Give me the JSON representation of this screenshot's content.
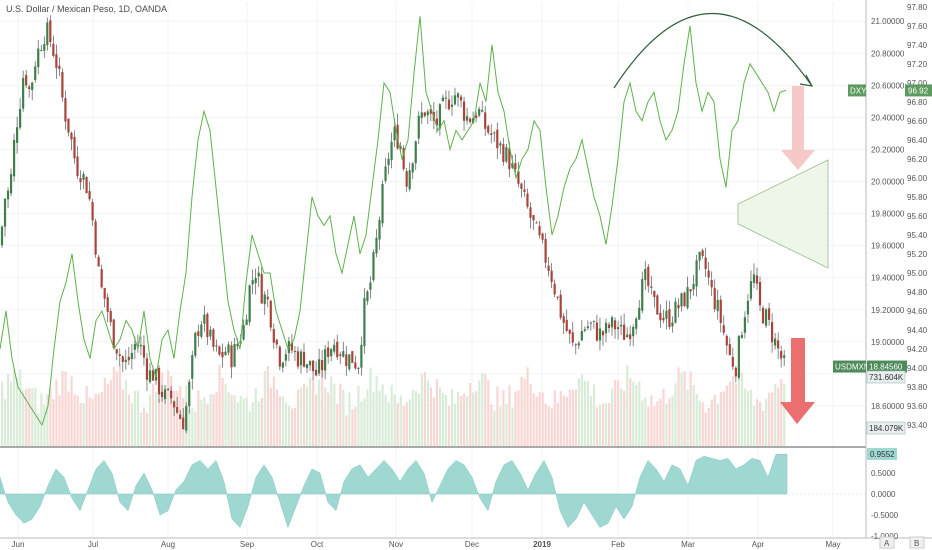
{
  "header": {
    "symbol_title": "U.S. Dollar / Mexican Peso, 1D, OANDA"
  },
  "chart_data": [
    {
      "type": "candlestick",
      "name": "USDMXN",
      "timeframe": "1D",
      "ylim": [
        18.35,
        21.12
      ],
      "x_months": [
        "Jun",
        "Jul",
        "Aug",
        "Sep",
        "Oct",
        "Nov",
        "Dec",
        "2019",
        "Feb",
        "Mar",
        "Apr",
        "May"
      ],
      "right_axis_ticks": [
        21.0,
        20.8,
        20.6,
        20.4,
        20.2,
        20.0,
        19.8,
        19.6,
        19.4,
        19.2,
        19.0,
        18.8,
        18.6
      ],
      "right_axis_labels": [
        "21.00000",
        "20.80000",
        "20.60000",
        "20.40000",
        "20.20000",
        "20.00000",
        "19.80000",
        "19.60000",
        "19.40000",
        "19.20000",
        "19.00000",
        "18.80000",
        "18.60000"
      ],
      "close_path": [
        [
          0,
          19.6
        ],
        [
          5,
          19.9
        ],
        [
          10,
          19.95
        ],
        [
          15,
          20.3
        ],
        [
          20,
          20.5
        ],
        [
          24,
          20.7
        ],
        [
          30,
          20.55
        ],
        [
          35,
          20.75
        ],
        [
          40,
          20.85
        ],
        [
          46,
          20.95
        ],
        [
          52,
          20.85
        ],
        [
          58,
          20.7
        ],
        [
          64,
          20.45
        ],
        [
          70,
          20.3
        ],
        [
          76,
          20.1
        ],
        [
          82,
          20.05
        ],
        [
          88,
          19.95
        ],
        [
          94,
          19.7
        ],
        [
          100,
          19.35
        ],
        [
          106,
          19.25
        ],
        [
          112,
          19.05
        ],
        [
          118,
          18.95
        ],
        [
          124,
          18.85
        ],
        [
          130,
          18.9
        ],
        [
          136,
          19.0
        ],
        [
          142,
          18.95
        ],
        [
          148,
          18.8
        ],
        [
          154,
          18.8
        ],
        [
          160,
          18.7
        ],
        [
          166,
          18.65
        ],
        [
          172,
          18.65
        ],
        [
          178,
          18.55
        ],
        [
          184,
          18.5
        ],
        [
          190,
          18.75
        ],
        [
          196,
          19.05
        ],
        [
          202,
          19.15
        ],
        [
          208,
          19.05
        ],
        [
          214,
          18.95
        ],
        [
          220,
          18.9
        ],
        [
          226,
          18.95
        ],
        [
          232,
          18.9
        ],
        [
          238,
          19.0
        ],
        [
          244,
          19.1
        ],
        [
          250,
          19.35
        ],
        [
          256,
          19.45
        ],
        [
          262,
          19.3
        ],
        [
          268,
          19.25
        ],
        [
          274,
          19.05
        ],
        [
          280,
          18.9
        ],
        [
          286,
          18.95
        ],
        [
          292,
          18.95
        ],
        [
          298,
          18.9
        ],
        [
          304,
          18.9
        ],
        [
          310,
          18.85
        ],
        [
          316,
          18.8
        ],
        [
          322,
          18.85
        ],
        [
          328,
          18.95
        ],
        [
          334,
          19.0
        ],
        [
          340,
          18.95
        ],
        [
          346,
          18.9
        ],
        [
          352,
          18.9
        ],
        [
          358,
          18.85
        ],
        [
          364,
          19.2
        ],
        [
          370,
          19.35
        ],
        [
          376,
          19.6
        ],
        [
          382,
          19.9
        ],
        [
          388,
          20.15
        ],
        [
          394,
          20.3
        ],
        [
          400,
          20.25
        ],
        [
          406,
          20.0
        ],
        [
          412,
          20.15
        ],
        [
          418,
          20.35
        ],
        [
          424,
          20.45
        ],
        [
          430,
          20.4
        ],
        [
          436,
          20.35
        ],
        [
          442,
          20.45
        ],
        [
          448,
          20.5
        ],
        [
          454,
          20.55
        ],
        [
          460,
          20.5
        ],
        [
          466,
          20.4
        ],
        [
          472,
          20.4
        ],
        [
          478,
          20.45
        ],
        [
          484,
          20.35
        ],
        [
          490,
          20.3
        ],
        [
          496,
          20.25
        ],
        [
          502,
          20.2
        ],
        [
          508,
          20.15
        ],
        [
          514,
          20.05
        ],
        [
          520,
          19.95
        ],
        [
          526,
          19.85
        ],
        [
          532,
          19.75
        ],
        [
          538,
          19.65
        ],
        [
          544,
          19.55
        ],
        [
          550,
          19.45
        ],
        [
          556,
          19.3
        ],
        [
          562,
          19.15
        ],
        [
          568,
          19.05
        ],
        [
          574,
          18.95
        ],
        [
          580,
          19.05
        ],
        [
          586,
          19.1
        ],
        [
          592,
          19.1
        ],
        [
          598,
          19.05
        ],
        [
          604,
          19.05
        ],
        [
          610,
          19.1
        ],
        [
          616,
          19.1
        ],
        [
          622,
          19.05
        ],
        [
          628,
          19.05
        ],
        [
          634,
          19.15
        ],
        [
          640,
          19.3
        ],
        [
          646,
          19.4
        ],
        [
          652,
          19.25
        ],
        [
          658,
          19.2
        ],
        [
          664,
          19.15
        ],
        [
          670,
          19.15
        ],
        [
          676,
          19.2
        ],
        [
          682,
          19.25
        ],
        [
          688,
          19.3
        ],
        [
          694,
          19.4
        ],
        [
          700,
          19.5
        ],
        [
          706,
          19.45
        ],
        [
          712,
          19.3
        ],
        [
          718,
          19.2
        ],
        [
          724,
          19.05
        ],
        [
          730,
          18.9
        ],
        [
          736,
          18.85
        ],
        [
          742,
          19.1
        ],
        [
          748,
          19.3
        ],
        [
          754,
          19.4
        ],
        [
          760,
          19.2
        ],
        [
          766,
          19.15
        ],
        [
          772,
          19.05
        ],
        [
          778,
          18.95
        ],
        [
          784,
          18.85
        ],
        [
          787,
          18.85
        ]
      ],
      "last_label": "USDMXN",
      "last_value": "18.84560"
    },
    {
      "type": "line",
      "name": "DXY",
      "ylim": [
        93.18,
        97.85
      ],
      "right_axis_ticks": [
        97.8,
        97.6,
        97.4,
        97.2,
        97.0,
        96.8,
        96.6,
        96.4,
        96.2,
        96.0,
        95.8,
        95.6,
        95.4,
        95.2,
        95.0,
        94.8,
        94.6,
        94.4,
        94.2,
        94.0,
        93.8,
        93.6,
        93.4
      ],
      "right_axis_labels": [
        "97.80",
        "97.60",
        "97.40",
        "97.20",
        "97.00",
        "96.80",
        "96.60",
        "96.40",
        "96.20",
        "96.00",
        "95.80",
        "95.60",
        "95.40",
        "95.20",
        "95.00",
        "94.80",
        "94.60",
        "94.40",
        "94.20",
        "94.00",
        "93.80",
        "93.60",
        "93.40"
      ],
      "x": [
        0,
        6,
        12,
        18,
        24,
        30,
        36,
        42,
        48,
        54,
        60,
        66,
        72,
        78,
        84,
        90,
        96,
        102,
        108,
        114,
        120,
        126,
        132,
        138,
        144,
        150,
        156,
        162,
        168,
        174,
        180,
        186,
        192,
        198,
        204,
        210,
        216,
        222,
        228,
        234,
        240,
        246,
        252,
        258,
        264,
        270,
        276,
        282,
        288,
        294,
        300,
        306,
        312,
        318,
        324,
        330,
        336,
        342,
        348,
        354,
        360,
        366,
        372,
        378,
        384,
        390,
        396,
        402,
        408,
        414,
        420,
        426,
        432,
        438,
        444,
        450,
        456,
        462,
        468,
        474,
        480,
        486,
        492,
        498,
        504,
        510,
        516,
        522,
        528,
        534,
        540,
        546,
        552,
        558,
        564,
        570,
        576,
        582,
        588,
        594,
        600,
        606,
        612,
        618,
        624,
        630,
        636,
        642,
        648,
        654,
        660,
        666,
        672,
        678,
        684,
        690,
        696,
        702,
        708,
        714,
        720,
        726,
        732,
        738,
        744,
        750,
        756,
        762,
        768,
        774,
        780,
        786
      ],
      "values": [
        94.2,
        94.6,
        94.1,
        93.8,
        93.7,
        93.6,
        93.5,
        93.4,
        93.6,
        94.2,
        94.7,
        94.9,
        95.2,
        94.7,
        94.3,
        94.1,
        94.5,
        94.6,
        94.4,
        94.2,
        94.3,
        94.5,
        94.4,
        94.2,
        94.6,
        94.1,
        93.9,
        94.3,
        94.4,
        94.1,
        94.6,
        95.0,
        95.8,
        96.4,
        96.7,
        96.5,
        95.9,
        95.3,
        94.7,
        94.4,
        94.2,
        94.9,
        95.4,
        95.2,
        95.0,
        95.0,
        94.6,
        94.4,
        94.2,
        94.3,
        94.6,
        95.2,
        95.8,
        95.6,
        95.5,
        95.6,
        95.2,
        95.0,
        95.3,
        95.6,
        95.2,
        95.4,
        95.9,
        96.4,
        97.0,
        96.9,
        96.5,
        96.2,
        96.4,
        97.1,
        97.7,
        96.9,
        96.7,
        96.5,
        96.6,
        96.3,
        96.5,
        96.4,
        96.5,
        96.6,
        97.0,
        96.8,
        97.4,
        96.9,
        96.7,
        96.3,
        96.0,
        96.2,
        96.3,
        96.6,
        96.5,
        95.9,
        95.4,
        95.6,
        95.9,
        96.1,
        96.2,
        96.4,
        96.1,
        95.8,
        95.6,
        95.3,
        95.7,
        96.2,
        96.8,
        97.0,
        96.7,
        96.6,
        96.8,
        96.9,
        96.6,
        96.4,
        96.5,
        96.7,
        97.2,
        97.6,
        97.0,
        96.7,
        96.9,
        96.8,
        96.2,
        95.9,
        96.5,
        96.6,
        97.0,
        97.2,
        97.1,
        97.0,
        96.9,
        96.7,
        96.9,
        96.92
      ],
      "last_label": "DXY",
      "last_value": "96.92"
    },
    {
      "type": "bar",
      "name": "Volume",
      "labels": [
        "731.604K",
        "184.079K"
      ]
    },
    {
      "type": "area",
      "name": "Correlation",
      "ylim": [
        -1.05,
        1.05
      ],
      "axis_ticks": [
        0.5,
        0.0,
        -0.5,
        -1.0
      ],
      "axis_labels": [
        "0.5000",
        "0.0000",
        "-0.5000",
        "-1.0000"
      ],
      "x": [
        0,
        8,
        16,
        24,
        32,
        40,
        48,
        56,
        64,
        72,
        80,
        88,
        96,
        104,
        112,
        120,
        128,
        136,
        144,
        152,
        160,
        168,
        176,
        184,
        192,
        200,
        208,
        216,
        224,
        232,
        240,
        248,
        256,
        264,
        272,
        280,
        288,
        296,
        304,
        312,
        320,
        328,
        336,
        344,
        352,
        360,
        368,
        376,
        384,
        392,
        400,
        408,
        416,
        424,
        432,
        440,
        448,
        456,
        464,
        472,
        480,
        488,
        496,
        504,
        512,
        520,
        528,
        536,
        544,
        552,
        560,
        568,
        576,
        584,
        592,
        600,
        608,
        616,
        624,
        632,
        640,
        648,
        656,
        664,
        672,
        680,
        688,
        696,
        704,
        712,
        720,
        728,
        736,
        744,
        752,
        760,
        768,
        776,
        784,
        787
      ],
      "values": [
        0.4,
        -0.2,
        -0.5,
        -0.7,
        -0.6,
        -0.3,
        0.2,
        0.6,
        0.4,
        -0.1,
        -0.4,
        0.1,
        0.6,
        0.8,
        0.5,
        -0.2,
        -0.4,
        0.2,
        0.5,
        0.1,
        -0.5,
        -0.4,
        0.1,
        0.3,
        0.7,
        0.8,
        0.6,
        0.8,
        0.3,
        -0.6,
        -0.8,
        -0.3,
        0.4,
        0.7,
        0.4,
        -0.2,
        -0.8,
        -0.3,
        0.2,
        0.6,
        0.5,
        -0.2,
        -0.4,
        0.3,
        0.6,
        0.7,
        0.4,
        0.6,
        0.8,
        0.6,
        0.3,
        0.6,
        0.8,
        0.5,
        -0.2,
        0.2,
        0.6,
        0.8,
        0.7,
        0.4,
        -0.1,
        -0.4,
        0.3,
        0.7,
        0.8,
        0.5,
        0.1,
        0.5,
        0.8,
        0.4,
        -0.4,
        -0.8,
        -0.6,
        -0.2,
        -0.5,
        -0.8,
        -0.7,
        -0.3,
        -0.6,
        -0.3,
        0.4,
        0.8,
        0.6,
        0.3,
        0.7,
        0.6,
        0.2,
        0.8,
        0.9,
        0.85,
        0.8,
        0.85,
        0.6,
        0.7,
        0.85,
        0.8,
        0.4,
        0.95,
        0.95,
        0.9552
      ],
      "last_value": "0.9552"
    }
  ],
  "drawings": {
    "arc_arrow_color": "#2e5e3a",
    "down_arrow_color_light": "#f6c9c9",
    "down_arrow_color_strong": "#ec6f6f",
    "triangle_fill": "#eef6ea",
    "triangle_stroke": "#9ab98d"
  },
  "colors": {
    "up": "#3e7f4c",
    "down": "#a9443a",
    "dxy_line": "#5fb14c",
    "tag_usdmxn_bg": "#4f8a5a",
    "tag_dxy_bg": "#5c9a60",
    "tag_volume_bg": "#e8eeee",
    "correlation_fill": "#9fd7d1"
  },
  "footer": {
    "scale_a": "A",
    "scale_b": "B"
  }
}
